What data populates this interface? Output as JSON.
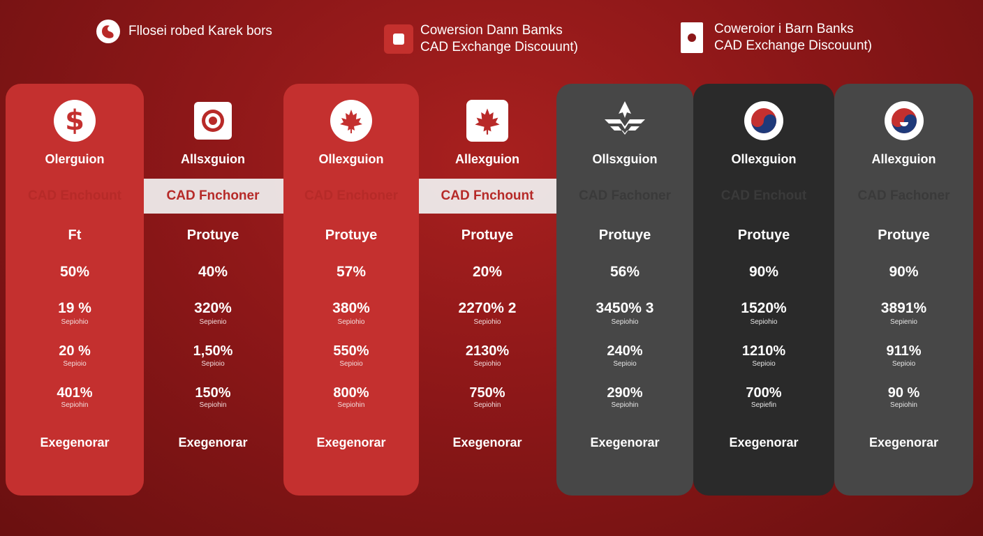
{
  "legend": [
    {
      "icon": "swirl-circle-icon",
      "text": "Fllosei robed Karek bors"
    },
    {
      "icon": "red-square-icon",
      "line1": "Cowersion Dann Bamks",
      "line2": "CAD Exchange Discouunt)"
    },
    {
      "icon": "white-card-icon",
      "line1": "Coweroior i Barn Banks",
      "line2": "CAD Exchange Discouunt)"
    }
  ],
  "columns": [
    {
      "icon": "dollar-icon",
      "name": "Olerguion",
      "band": "CAD Enchount",
      "type": "Ft",
      "v1": "50%",
      "v2": "19 %",
      "s2": "Sepiohio",
      "v3": "20 %",
      "s3": "Sepioio",
      "v4": "401%",
      "s4": "Sepiohin",
      "foot": "Exegenorar"
    },
    {
      "icon": "target-icon",
      "name": "Allsxguion",
      "band": "CAD Fnchoner",
      "type": "Protuye",
      "v1": "40%",
      "v2": "320%",
      "s2": "Sepienio",
      "v3": "1,50%",
      "s3": "Sepioio",
      "v4": "150%",
      "s4": "Sepiohin",
      "foot": "Exegenorar"
    },
    {
      "icon": "maple-leaf-icon",
      "name": "Ollexguion",
      "band": "CAD Enchoner",
      "type": "Protuye",
      "v1": "57%",
      "v2": "380%",
      "s2": "Sepiohio",
      "v3": "550%",
      "s3": "Sepioio",
      "v4": "800%",
      "s4": "Sepiohin",
      "foot": "Exegenorar"
    },
    {
      "icon": "maple-leaf-square-icon",
      "name": "Allexguion",
      "band": "CAD Fnchount",
      "type": "Protuye",
      "v1": "20%",
      "v2": "2270% 2",
      "s2": "Sepiohio",
      "v3": "2130%",
      "s3": "Sepiohio",
      "v4": "750%",
      "s4": "Sepiohin",
      "foot": "Exegenorar"
    },
    {
      "icon": "stylized-leaf-icon",
      "name": "Ollsxguion",
      "band": "CAD Fachoner",
      "type": "Protuye",
      "v1": "56%",
      "v2": "3450% 3",
      "s2": "Sepiohio",
      "v3": "240%",
      "s3": "Sepioio",
      "v4": "290%",
      "s4": "Sepiohin",
      "foot": "Exegenorar"
    },
    {
      "icon": "korea-circle-icon",
      "name": "Ollexguion",
      "band": "CAD Enchout",
      "type": "Protuye",
      "v1": "90%",
      "v2": "1520%",
      "s2": "Sepiohio",
      "v3": "1210%",
      "s3": "Sepioio",
      "v4": "700%",
      "s4": "Sepiefin",
      "foot": "Exegenorar"
    },
    {
      "icon": "korea-circle-icon",
      "name": "Allexguion",
      "band": "CAD Fachoner",
      "type": "Protuye",
      "v1": "90%",
      "v2": "3891%",
      "s2": "Sepienio",
      "v3": "911%",
      "s3": "Sepioio",
      "v4": "90 %",
      "s4": "Sepiohin",
      "foot": "Exegenorar"
    }
  ],
  "colors": {
    "red_column": "#c4302f",
    "gray_column": "#474747",
    "dark_column": "#2a2a2a",
    "band_red_text": "#b62a28",
    "band_dark_text": "#3a3a3a"
  }
}
